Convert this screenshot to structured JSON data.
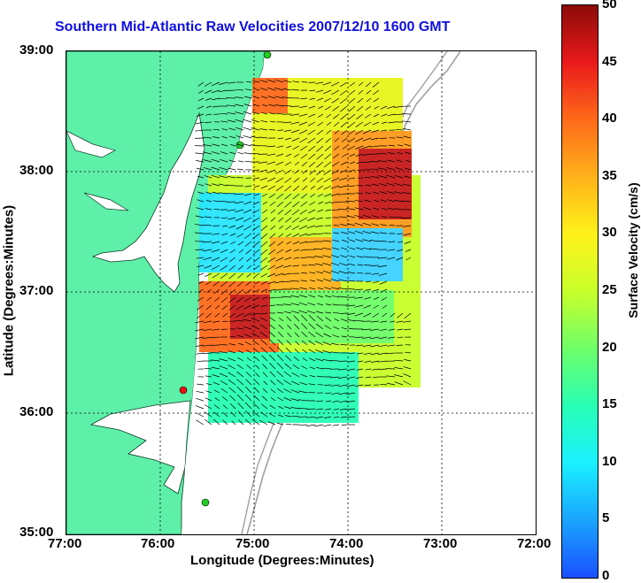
{
  "title": "Southern Mid-Atlantic Raw Velocities 2007/12/10 1600 GMT",
  "x_axis": {
    "label": "Longitude (Degrees:Minutes)",
    "ticks": [
      "77:00",
      "76:00",
      "75:00",
      "74:00",
      "73:00",
      "72:00"
    ]
  },
  "y_axis": {
    "label": "Latitude (Degrees:Minutes)",
    "ticks": [
      "39:00",
      "38:00",
      "37:00",
      "36:00",
      "35:00"
    ]
  },
  "colorbar": {
    "label": "Surface Velocity (cm/s)",
    "ticks": [
      "50",
      "45",
      "40",
      "35",
      "30",
      "25",
      "20",
      "15",
      "10",
      "5",
      "0"
    ]
  },
  "colors": {
    "land": "#5ef0a8",
    "title": "#1010e0",
    "bathymetry": "#a0a0a0",
    "station_green": "#22cc22",
    "station_red": "#ee1111"
  },
  "map": {
    "projection": "lon-lat",
    "extent": {
      "lon_min": -77,
      "lon_max": -72,
      "lat_min": 35,
      "lat_max": 39
    },
    "grid": true
  }
}
